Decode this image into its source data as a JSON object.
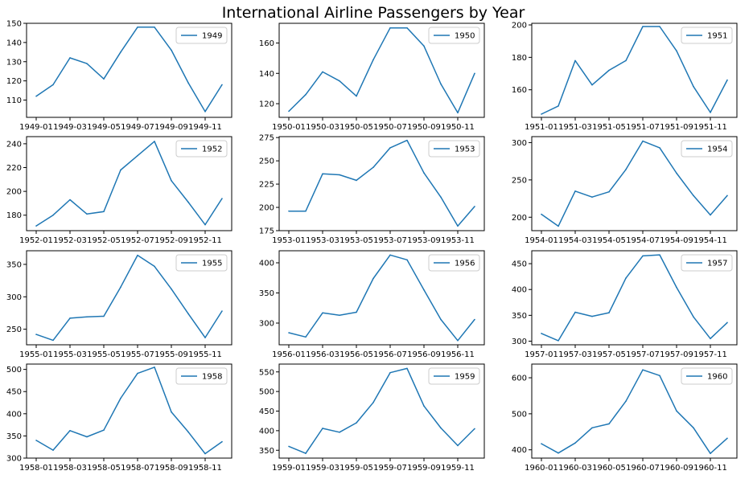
{
  "figure": {
    "suptitle": "International Airline Passengers by Year"
  },
  "colors": {
    "series": "#1f77b4"
  },
  "chart_data": [
    {
      "type": "line",
      "legend_placement": "top-right",
      "grid": false,
      "x": [
        "1949-01",
        "1949-02",
        "1949-03",
        "1949-04",
        "1949-05",
        "1949-06",
        "1949-07",
        "1949-08",
        "1949-09",
        "1949-10",
        "1949-11",
        "1949-12"
      ],
      "x_tick_labels": [
        "1949-01",
        "1949-03",
        "1949-05",
        "1949-07",
        "1949-09",
        "1949-11"
      ],
      "series": [
        {
          "name": "1949",
          "values": [
            112,
            118,
            132,
            129,
            121,
            135,
            148,
            148,
            136,
            119,
            104,
            118
          ]
        }
      ],
      "ylim": [
        101,
        150
      ],
      "y_ticks": [
        110,
        120,
        130,
        140,
        150
      ]
    },
    {
      "type": "line",
      "legend_placement": "top-right",
      "grid": false,
      "x": [
        "1950-01",
        "1950-02",
        "1950-03",
        "1950-04",
        "1950-05",
        "1950-06",
        "1950-07",
        "1950-08",
        "1950-09",
        "1950-10",
        "1950-11",
        "1950-12"
      ],
      "x_tick_labels": [
        "1950-01",
        "1950-03",
        "1950-05",
        "1950-07",
        "1950-09",
        "1950-11"
      ],
      "series": [
        {
          "name": "1950",
          "values": [
            115,
            126,
            141,
            135,
            125,
            149,
            170,
            170,
            158,
            133,
            114,
            140
          ]
        }
      ],
      "ylim": [
        111,
        173
      ],
      "y_ticks": [
        120,
        140,
        160
      ]
    },
    {
      "type": "line",
      "legend_placement": "top-right",
      "grid": false,
      "x": [
        "1951-01",
        "1951-02",
        "1951-03",
        "1951-04",
        "1951-05",
        "1951-06",
        "1951-07",
        "1951-08",
        "1951-09",
        "1951-10",
        "1951-11",
        "1951-12"
      ],
      "x_tick_labels": [
        "1951-01",
        "1951-03",
        "1951-05",
        "1951-07",
        "1951-09",
        "1951-11"
      ],
      "series": [
        {
          "name": "1951",
          "values": [
            145,
            150,
            178,
            163,
            172,
            178,
            199,
            199,
            184,
            162,
            146,
            166
          ]
        }
      ],
      "ylim": [
        143,
        201
      ],
      "y_ticks": [
        160,
        180,
        200
      ]
    },
    {
      "type": "line",
      "legend_placement": "top-right",
      "grid": false,
      "x": [
        "1952-01",
        "1952-02",
        "1952-03",
        "1952-04",
        "1952-05",
        "1952-06",
        "1952-07",
        "1952-08",
        "1952-09",
        "1952-10",
        "1952-11",
        "1952-12"
      ],
      "x_tick_labels": [
        "1952-01",
        "1952-03",
        "1952-05",
        "1952-07",
        "1952-09",
        "1952-11"
      ],
      "series": [
        {
          "name": "1952",
          "values": [
            171,
            180,
            193,
            181,
            183,
            218,
            230,
            242,
            209,
            191,
            172,
            194
          ]
        }
      ],
      "ylim": [
        167,
        246
      ],
      "y_ticks": [
        180,
        200,
        220,
        240
      ]
    },
    {
      "type": "line",
      "legend_placement": "top-right",
      "grid": false,
      "x": [
        "1953-01",
        "1953-02",
        "1953-03",
        "1953-04",
        "1953-05",
        "1953-06",
        "1953-07",
        "1953-08",
        "1953-09",
        "1953-10",
        "1953-11",
        "1953-12"
      ],
      "x_tick_labels": [
        "1953-01",
        "1953-03",
        "1953-05",
        "1953-07",
        "1953-09",
        "1953-11"
      ],
      "series": [
        {
          "name": "1953",
          "values": [
            196,
            196,
            236,
            235,
            229,
            243,
            264,
            272,
            237,
            211,
            180,
            201
          ]
        }
      ],
      "ylim": [
        175,
        276
      ],
      "y_ticks": [
        175,
        200,
        225,
        250,
        275
      ]
    },
    {
      "type": "line",
      "legend_placement": "top-right",
      "grid": false,
      "x": [
        "1954-01",
        "1954-02",
        "1954-03",
        "1954-04",
        "1954-05",
        "1954-06",
        "1954-07",
        "1954-08",
        "1954-09",
        "1954-10",
        "1954-11",
        "1954-12"
      ],
      "x_tick_labels": [
        "1954-01",
        "1954-03",
        "1954-05",
        "1954-07",
        "1954-09",
        "1954-11"
      ],
      "series": [
        {
          "name": "1954",
          "values": [
            204,
            188,
            235,
            227,
            234,
            264,
            302,
            293,
            259,
            229,
            203,
            229
          ]
        }
      ],
      "ylim": [
        182,
        308
      ],
      "y_ticks": [
        200,
        250,
        300
      ]
    },
    {
      "type": "line",
      "legend_placement": "top-right",
      "grid": false,
      "x": [
        "1955-01",
        "1955-02",
        "1955-03",
        "1955-04",
        "1955-05",
        "1955-06",
        "1955-07",
        "1955-08",
        "1955-09",
        "1955-10",
        "1955-11",
        "1955-12"
      ],
      "x_tick_labels": [
        "1955-01",
        "1955-03",
        "1955-05",
        "1955-07",
        "1955-09",
        "1955-11"
      ],
      "series": [
        {
          "name": "1955",
          "values": [
            242,
            233,
            267,
            269,
            270,
            315,
            364,
            347,
            312,
            274,
            237,
            278
          ]
        }
      ],
      "ylim": [
        226,
        371
      ],
      "y_ticks": [
        250,
        300,
        350
      ]
    },
    {
      "type": "line",
      "legend_placement": "top-right",
      "grid": false,
      "x": [
        "1956-01",
        "1956-02",
        "1956-03",
        "1956-04",
        "1956-05",
        "1956-06",
        "1956-07",
        "1956-08",
        "1956-09",
        "1956-10",
        "1956-11",
        "1956-12"
      ],
      "x_tick_labels": [
        "1956-01",
        "1956-03",
        "1956-05",
        "1956-07",
        "1956-09",
        "1956-11"
      ],
      "series": [
        {
          "name": "1956",
          "values": [
            284,
            277,
            317,
            313,
            318,
            374,
            413,
            405,
            355,
            306,
            271,
            306
          ]
        }
      ],
      "ylim": [
        264,
        420
      ],
      "y_ticks": [
        300,
        350,
        400
      ]
    },
    {
      "type": "line",
      "legend_placement": "top-right",
      "grid": false,
      "x": [
        "1957-01",
        "1957-02",
        "1957-03",
        "1957-04",
        "1957-05",
        "1957-06",
        "1957-07",
        "1957-08",
        "1957-09",
        "1957-10",
        "1957-11",
        "1957-12"
      ],
      "x_tick_labels": [
        "1957-01",
        "1957-03",
        "1957-05",
        "1957-07",
        "1957-09",
        "1957-11"
      ],
      "series": [
        {
          "name": "1957",
          "values": [
            315,
            301,
            356,
            348,
            355,
            422,
            465,
            467,
            404,
            347,
            305,
            336
          ]
        }
      ],
      "ylim": [
        293,
        475
      ],
      "y_ticks": [
        300,
        350,
        400,
        450
      ]
    },
    {
      "type": "line",
      "legend_placement": "top-right",
      "grid": false,
      "x": [
        "1958-01",
        "1958-02",
        "1958-03",
        "1958-04",
        "1958-05",
        "1958-06",
        "1958-07",
        "1958-08",
        "1958-09",
        "1958-10",
        "1958-11",
        "1958-12"
      ],
      "x_tick_labels": [
        "1958-01",
        "1958-03",
        "1958-05",
        "1958-07",
        "1958-09",
        "1958-11"
      ],
      "series": [
        {
          "name": "1958",
          "values": [
            340,
            318,
            362,
            348,
            363,
            435,
            491,
            505,
            404,
            359,
            310,
            337
          ]
        }
      ],
      "ylim": [
        300,
        512
      ],
      "y_ticks": [
        300,
        350,
        400,
        450,
        500
      ]
    },
    {
      "type": "line",
      "legend_placement": "top-right",
      "grid": false,
      "x": [
        "1959-01",
        "1959-02",
        "1959-03",
        "1959-04",
        "1959-05",
        "1959-06",
        "1959-07",
        "1959-08",
        "1959-09",
        "1959-10",
        "1959-11",
        "1959-12"
      ],
      "x_tick_labels": [
        "1959-01",
        "1959-03",
        "1959-05",
        "1959-07",
        "1959-09",
        "1959-11"
      ],
      "series": [
        {
          "name": "1959",
          "values": [
            360,
            342,
            406,
            396,
            420,
            472,
            548,
            559,
            463,
            407,
            362,
            405
          ]
        }
      ],
      "ylim": [
        330,
        570
      ],
      "y_ticks": [
        350,
        400,
        450,
        500,
        550
      ]
    },
    {
      "type": "line",
      "legend_placement": "top-right",
      "grid": false,
      "x": [
        "1960-01",
        "1960-02",
        "1960-03",
        "1960-04",
        "1960-05",
        "1960-06",
        "1960-07",
        "1960-08",
        "1960-09",
        "1960-10",
        "1960-11",
        "1960-12"
      ],
      "x_tick_labels": [
        "1960-01",
        "1960-03",
        "1960-05",
        "1960-07",
        "1960-09",
        "1960-11"
      ],
      "series": [
        {
          "name": "1960",
          "values": [
            417,
            391,
            419,
            461,
            472,
            535,
            622,
            606,
            508,
            461,
            390,
            432
          ]
        }
      ],
      "ylim": [
        377,
        638
      ],
      "y_ticks": [
        400,
        500,
        600
      ]
    }
  ]
}
